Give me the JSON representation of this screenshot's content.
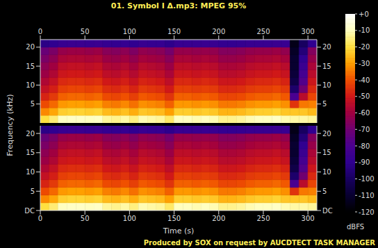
{
  "chart_data": {
    "type": "spectrogram",
    "title": "01. Symbol I Δ.mp3: MPEG 95%",
    "xlabel": "Time (s)",
    "ylabel": "Frequency (kHz)",
    "footer": "Produced by SOX on request by AUCDTECT TASK MANAGER",
    "xlim": [
      0,
      310
    ],
    "xticks": [
      0,
      50,
      100,
      150,
      200,
      250,
      300
    ],
    "ylim": [
      0,
      22
    ],
    "time_bins": [
      0,
      10,
      20,
      30,
      40,
      50,
      60,
      70,
      80,
      90,
      100,
      110,
      120,
      130,
      140,
      150,
      160,
      170,
      180,
      190,
      200,
      210,
      220,
      230,
      240,
      250,
      260,
      270,
      280,
      290,
      300,
      310
    ],
    "frequency_bins": [
      0,
      2,
      4,
      6,
      8,
      10,
      12,
      14,
      16,
      18,
      20,
      22
    ],
    "colorbar": {
      "label": "dBFS",
      "range": [
        -120,
        0
      ],
      "ticks": [
        {
          "value": 0,
          "label": "+0"
        },
        -10,
        -20,
        -30,
        -40,
        -50,
        -60,
        -70,
        -80,
        -90,
        -100,
        -110,
        -120
      ]
    },
    "channels": [
      {
        "yticks": [
          5,
          10,
          15,
          20
        ],
        "cells": [
          [
            -20,
            -33,
            -41,
            -48,
            -53,
            -57,
            -61,
            -64,
            -68,
            -72,
            -92
          ],
          [
            -16,
            -29,
            -37,
            -44,
            -49,
            -53,
            -57,
            -60,
            -64,
            -68,
            -90
          ],
          [
            -10,
            -23,
            -31,
            -38,
            -43,
            -47,
            -51,
            -54,
            -58,
            -62,
            -87
          ],
          [
            -9,
            -22,
            -30,
            -37,
            -42,
            -46,
            -50,
            -53,
            -57,
            -61,
            -86
          ],
          [
            -9,
            -22,
            -30,
            -37,
            -42,
            -46,
            -50,
            -53,
            -57,
            -61,
            -86
          ],
          [
            -10,
            -23,
            -31,
            -38,
            -43,
            -47,
            -51,
            -54,
            -58,
            -62,
            -87
          ],
          [
            -9,
            -22,
            -30,
            -37,
            -42,
            -46,
            -50,
            -53,
            -57,
            -61,
            -86
          ],
          [
            -13,
            -26,
            -34,
            -41,
            -46,
            -50,
            -54,
            -57,
            -61,
            -65,
            -88
          ],
          [
            -14,
            -27,
            -35,
            -42,
            -47,
            -51,
            -55,
            -58,
            -62,
            -66,
            -89
          ],
          [
            -12,
            -25,
            -33,
            -40,
            -45,
            -49,
            -53,
            -56,
            -60,
            -64,
            -88
          ],
          [
            -15,
            -28,
            -36,
            -43,
            -48,
            -52,
            -56,
            -59,
            -63,
            -67,
            -90
          ],
          [
            -11,
            -24,
            -32,
            -39,
            -44,
            -48,
            -52,
            -55,
            -59,
            -63,
            -87
          ],
          [
            -12,
            -25,
            -33,
            -40,
            -45,
            -49,
            -53,
            -56,
            -60,
            -64,
            -88
          ],
          [
            -13,
            -26,
            -34,
            -41,
            -46,
            -50,
            -54,
            -57,
            -61,
            -65,
            -88
          ],
          [
            -17,
            -30,
            -38,
            -45,
            -50,
            -54,
            -58,
            -61,
            -65,
            -69,
            -91
          ],
          [
            -10,
            -23,
            -31,
            -38,
            -43,
            -47,
            -51,
            -54,
            -58,
            -62,
            -87
          ],
          [
            -10,
            -23,
            -31,
            -38,
            -43,
            -47,
            -51,
            -54,
            -58,
            -62,
            -87
          ],
          [
            -11,
            -24,
            -32,
            -39,
            -44,
            -48,
            -52,
            -55,
            -59,
            -63,
            -87
          ],
          [
            -10,
            -23,
            -31,
            -38,
            -43,
            -47,
            -51,
            -54,
            -58,
            -62,
            -87
          ],
          [
            -11,
            -24,
            -32,
            -39,
            -44,
            -48,
            -52,
            -55,
            -59,
            -63,
            -87
          ],
          [
            -14,
            -27,
            -35,
            -42,
            -47,
            -51,
            -55,
            -58,
            -62,
            -66,
            -89
          ],
          [
            -14,
            -27,
            -35,
            -42,
            -47,
            -51,
            -55,
            -58,
            -62,
            -66,
            -89
          ],
          [
            -13,
            -26,
            -34,
            -41,
            -46,
            -50,
            -54,
            -57,
            -61,
            -65,
            -88
          ],
          [
            -11,
            -24,
            -32,
            -39,
            -44,
            -48,
            -52,
            -55,
            -59,
            -63,
            -87
          ],
          [
            -10,
            -23,
            -31,
            -38,
            -43,
            -47,
            -51,
            -54,
            -58,
            -62,
            -87
          ],
          [
            -10,
            -23,
            -31,
            -38,
            -43,
            -47,
            -51,
            -54,
            -58,
            -62,
            -87
          ],
          [
            -9,
            -22,
            -30,
            -37,
            -42,
            -46,
            -50,
            -53,
            -57,
            -61,
            -86
          ],
          [
            -11,
            -24,
            -32,
            -39,
            -44,
            -48,
            -52,
            -55,
            -59,
            -63,
            -87
          ],
          [
            -12,
            -24,
            -45,
            -80,
            -98,
            -105,
            -108,
            -110,
            -110,
            -112,
            -115
          ],
          [
            -12,
            -24,
            -35,
            -55,
            -70,
            -78,
            -82,
            -86,
            -90,
            -95,
            -100
          ],
          [
            -13,
            -26,
            -34,
            -42,
            -47,
            -51,
            -55,
            -58,
            -62,
            -66,
            -90
          ]
        ]
      },
      {
        "yticks": [
          {
            "value": 0,
            "label": "DC"
          },
          5,
          10,
          15,
          20
        ],
        "cells": [
          [
            -20,
            -33,
            -41,
            -48,
            -53,
            -57,
            -61,
            -64,
            -68,
            -72,
            -92
          ],
          [
            -16,
            -29,
            -37,
            -44,
            -49,
            -53,
            -57,
            -60,
            -64,
            -68,
            -90
          ],
          [
            -10,
            -23,
            -31,
            -38,
            -43,
            -47,
            -51,
            -54,
            -58,
            -62,
            -87
          ],
          [
            -9,
            -22,
            -30,
            -37,
            -42,
            -46,
            -50,
            -53,
            -57,
            -61,
            -86
          ],
          [
            -9,
            -22,
            -30,
            -37,
            -42,
            -46,
            -50,
            -53,
            -57,
            -61,
            -86
          ],
          [
            -10,
            -23,
            -31,
            -38,
            -43,
            -47,
            -51,
            -54,
            -58,
            -62,
            -87
          ],
          [
            -9,
            -22,
            -30,
            -37,
            -42,
            -46,
            -50,
            -53,
            -57,
            -61,
            -86
          ],
          [
            -13,
            -26,
            -34,
            -41,
            -46,
            -50,
            -54,
            -57,
            -61,
            -65,
            -88
          ],
          [
            -14,
            -27,
            -35,
            -42,
            -47,
            -51,
            -55,
            -58,
            -62,
            -66,
            -89
          ],
          [
            -12,
            -25,
            -33,
            -40,
            -45,
            -49,
            -53,
            -56,
            -60,
            -64,
            -88
          ],
          [
            -15,
            -28,
            -36,
            -43,
            -48,
            -52,
            -56,
            -59,
            -63,
            -67,
            -90
          ],
          [
            -11,
            -24,
            -32,
            -39,
            -44,
            -48,
            -52,
            -55,
            -59,
            -63,
            -87
          ],
          [
            -12,
            -25,
            -33,
            -40,
            -45,
            -49,
            -53,
            -56,
            -60,
            -64,
            -88
          ],
          [
            -13,
            -26,
            -34,
            -41,
            -46,
            -50,
            -54,
            -57,
            -61,
            -65,
            -88
          ],
          [
            -17,
            -30,
            -38,
            -45,
            -50,
            -54,
            -58,
            -61,
            -65,
            -69,
            -91
          ],
          [
            -10,
            -23,
            -31,
            -38,
            -43,
            -47,
            -51,
            -54,
            -58,
            -62,
            -87
          ],
          [
            -10,
            -23,
            -31,
            -38,
            -43,
            -47,
            -51,
            -54,
            -58,
            -62,
            -87
          ],
          [
            -11,
            -24,
            -32,
            -39,
            -44,
            -48,
            -52,
            -55,
            -59,
            -63,
            -87
          ],
          [
            -10,
            -23,
            -31,
            -38,
            -43,
            -47,
            -51,
            -54,
            -58,
            -62,
            -87
          ],
          [
            -11,
            -24,
            -32,
            -39,
            -44,
            -48,
            -52,
            -55,
            -59,
            -63,
            -87
          ],
          [
            -14,
            -27,
            -35,
            -42,
            -47,
            -51,
            -55,
            -58,
            -62,
            -66,
            -89
          ],
          [
            -14,
            -27,
            -35,
            -42,
            -47,
            -51,
            -55,
            -58,
            -62,
            -66,
            -89
          ],
          [
            -13,
            -26,
            -34,
            -41,
            -46,
            -50,
            -54,
            -57,
            -61,
            -65,
            -88
          ],
          [
            -11,
            -24,
            -32,
            -39,
            -44,
            -48,
            -52,
            -55,
            -59,
            -63,
            -87
          ],
          [
            -10,
            -23,
            -31,
            -38,
            -43,
            -47,
            -51,
            -54,
            -58,
            -62,
            -87
          ],
          [
            -10,
            -23,
            -31,
            -38,
            -43,
            -47,
            -51,
            -54,
            -58,
            -62,
            -87
          ],
          [
            -9,
            -22,
            -30,
            -37,
            -42,
            -46,
            -50,
            -53,
            -57,
            -61,
            -86
          ],
          [
            -11,
            -24,
            -32,
            -39,
            -44,
            -48,
            -52,
            -55,
            -59,
            -63,
            -87
          ],
          [
            -12,
            -24,
            -45,
            -80,
            -98,
            -105,
            -108,
            -110,
            -110,
            -112,
            -115
          ],
          [
            -12,
            -24,
            -35,
            -55,
            -70,
            -78,
            -82,
            -86,
            -90,
            -95,
            -100
          ],
          [
            -13,
            -26,
            -34,
            -42,
            -47,
            -51,
            -55,
            -58,
            -62,
            -66,
            -90
          ]
        ]
      }
    ]
  }
}
